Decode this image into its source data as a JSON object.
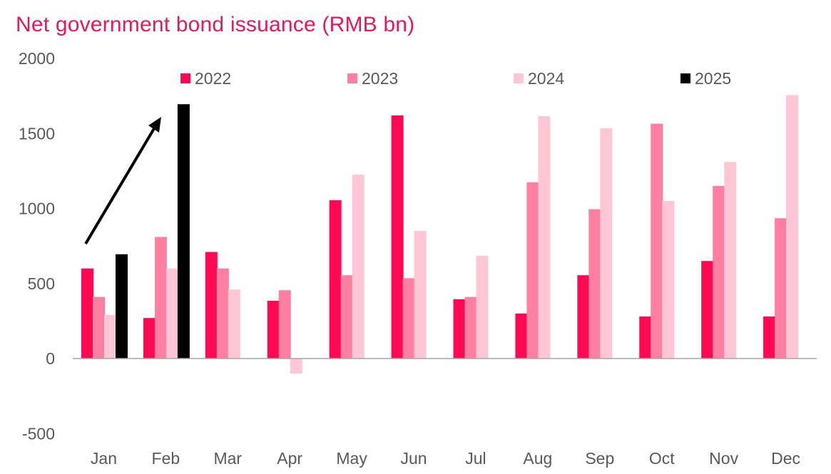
{
  "chart_data": {
    "type": "bar",
    "title": "Net government bond issuance (RMB bn)",
    "xlabel": "",
    "ylabel": "",
    "ylim": [
      -500,
      2000
    ],
    "yticks": [
      -500,
      0,
      500,
      1000,
      1500,
      2000
    ],
    "categories": [
      "Jan",
      "Feb",
      "Mar",
      "Apr",
      "May",
      "Jun",
      "Jul",
      "Aug",
      "Sep",
      "Oct",
      "Nov",
      "Dec"
    ],
    "series": [
      {
        "name": "2022",
        "color": "#ff0a52",
        "values": [
          600,
          270,
          710,
          385,
          1055,
          1620,
          395,
          300,
          555,
          280,
          650,
          280
        ]
      },
      {
        "name": "2023",
        "color": "#ff7fa2",
        "values": [
          410,
          810,
          600,
          455,
          555,
          535,
          410,
          1175,
          995,
          1565,
          1150,
          935
        ]
      },
      {
        "name": "2024",
        "color": "#ffc6d6",
        "values": [
          290,
          600,
          460,
          -100,
          1225,
          850,
          685,
          1615,
          1535,
          1050,
          1310,
          1755
        ]
      },
      {
        "name": "2025",
        "color": "#000000",
        "values": [
          695,
          1695,
          null,
          null,
          null,
          null,
          null,
          null,
          null,
          null,
          null,
          null
        ]
      }
    ],
    "legend": "top",
    "grid": false,
    "annotations": [
      {
        "type": "arrow",
        "from_category": "Jan",
        "to_category": "Feb",
        "description": "upward arrow"
      }
    ]
  }
}
